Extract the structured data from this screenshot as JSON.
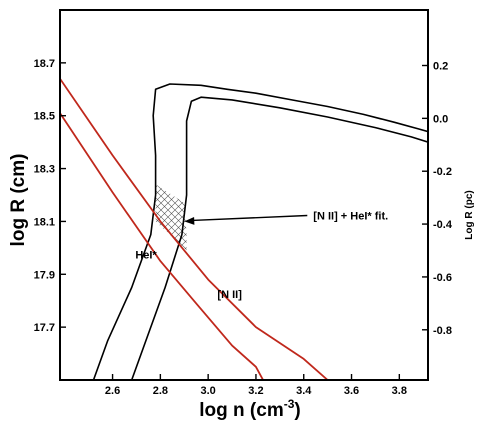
{
  "chart_data": {
    "type": "line",
    "title": "",
    "xlabel": "log n (cm",
    "xlabel_sup": "-3",
    "xlabel_close": ")",
    "ylabel": "log R (cm)",
    "ylabel_right": "Log R (pc)",
    "xlim": [
      2.38,
      3.92
    ],
    "ylim": [
      17.5,
      18.9
    ],
    "ylim_right_pc": [
      -0.99,
      0.41
    ],
    "grid": false,
    "x_ticks": [
      2.6,
      2.8,
      3.0,
      3.2,
      3.4,
      3.6,
      3.8
    ],
    "x_tick_labels": [
      "2.6",
      "2.8",
      "3.0",
      "3.2",
      "3.4",
      "3.6",
      "3.8"
    ],
    "y_ticks": [
      17.7,
      17.9,
      18.1,
      18.3,
      18.5,
      18.7
    ],
    "y_tick_labels": [
      "17.7",
      "17.9",
      "18.1",
      "18.3",
      "18.5",
      "18.7"
    ],
    "y_right_ticks": [
      -0.8,
      -0.6,
      -0.4,
      -0.2,
      0.0,
      0.2
    ],
    "y_right_tick_labels": [
      "-0.8",
      "-0.6",
      "-0.4",
      "-0.2",
      "0.0",
      "0.2"
    ],
    "colors": {
      "nii": "#c0281c",
      "hei": "#000000",
      "hatch": "#555555"
    },
    "series": [
      {
        "name": "HeI*",
        "color": "#000000",
        "x": [
          2.52,
          2.58,
          2.68,
          2.76,
          2.78,
          2.78,
          2.77,
          2.78,
          2.84,
          2.97,
          3.08,
          3.2,
          3.35,
          3.5,
          3.65,
          3.78,
          3.88,
          3.92
        ],
        "y": [
          17.5,
          17.65,
          17.85,
          18.05,
          18.2,
          18.35,
          18.5,
          18.6,
          18.62,
          18.615,
          18.6,
          18.585,
          18.56,
          18.535,
          18.505,
          18.475,
          18.45,
          18.44
        ]
      },
      {
        "name": "",
        "color": "#000000",
        "x": [
          2.68,
          2.74,
          2.82,
          2.89,
          2.91,
          2.91,
          2.91,
          2.93,
          2.97,
          3.1,
          3.3,
          3.5,
          3.7,
          3.85,
          3.92
        ],
        "y": [
          17.5,
          17.65,
          17.85,
          18.05,
          18.2,
          18.35,
          18.48,
          18.555,
          18.57,
          18.56,
          18.53,
          18.495,
          18.455,
          18.42,
          18.4
        ]
      },
      {
        "name": "",
        "color": "#c0281c",
        "x": [
          2.38,
          2.6,
          2.8,
          3.0,
          3.2,
          3.4,
          3.5
        ],
        "y": [
          18.64,
          18.35,
          18.1,
          17.88,
          17.7,
          17.58,
          17.5
        ]
      },
      {
        "name": "[N II]",
        "color": "#c0281c",
        "x": [
          2.38,
          2.6,
          2.8,
          2.95,
          3.1,
          3.2,
          3.23
        ],
        "y": [
          18.51,
          18.21,
          17.95,
          17.79,
          17.63,
          17.55,
          17.5
        ]
      }
    ],
    "annotations": [
      {
        "text": "[N II] + HeI* fit.",
        "x": 3.44,
        "y": 18.13,
        "arrow_to": [
          2.9,
          18.1
        ]
      },
      {
        "text": "HeI*",
        "x": 2.74,
        "y": 17.96
      },
      {
        "text": "[N II]",
        "x": 3.09,
        "y": 17.81
      }
    ],
    "hatched_region": {
      "label": "[N II] + HeI* fit.",
      "x": [
        2.78,
        2.78,
        2.9,
        2.91,
        2.91
      ],
      "y": [
        18.1,
        18.24,
        18.17,
        18.05,
        17.99
      ]
    }
  }
}
